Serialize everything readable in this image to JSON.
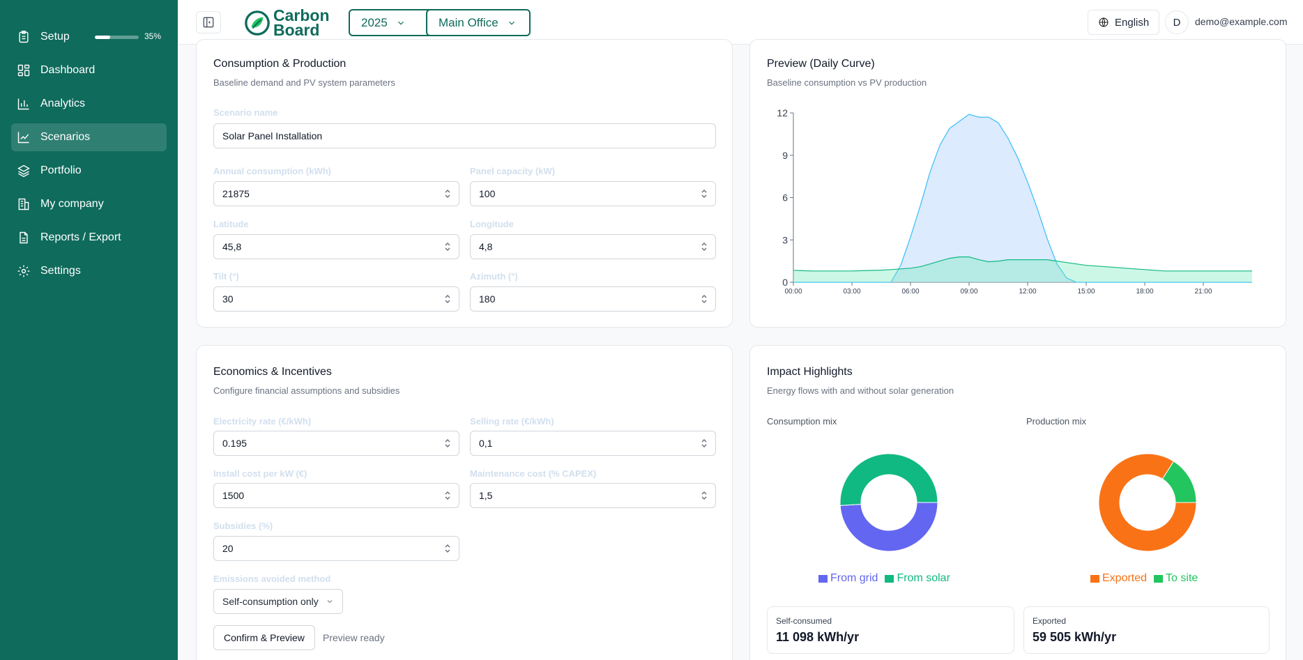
{
  "sidebar": {
    "setup_label": "Setup",
    "setup_progress_text": "35%",
    "setup_progress": 35,
    "items": [
      {
        "label": "Dashboard"
      },
      {
        "label": "Analytics"
      },
      {
        "label": "Scenarios"
      },
      {
        "label": "Portfolio"
      },
      {
        "label": "My company"
      },
      {
        "label": "Reports / Export"
      },
      {
        "label": "Settings"
      }
    ]
  },
  "header": {
    "logo_line1": "Carbon",
    "logo_line2": "Board",
    "year": "2025",
    "site": "Main Office",
    "language": "English",
    "avatar_initial": "D",
    "email": "demo@example.com"
  },
  "consumption": {
    "title": "Consumption & Production",
    "subtitle": "Baseline demand and PV system parameters",
    "scenario_label": "Scenario name",
    "scenario_value": "Solar Panel Installation",
    "annual_label": "Annual consumption (kWh)",
    "annual_value": "21875",
    "panel_label": "Panel capacity (kW)",
    "panel_value": "100",
    "lat_label": "Latitude",
    "lat_value": "45,8",
    "lon_label": "Longitude",
    "lon_value": "4,8",
    "tilt_label": "Tilt (°)",
    "tilt_value": "30",
    "azimuth_label": "Azimuth (°)",
    "azimuth_value": "180"
  },
  "economics": {
    "title": "Economics & Incentives",
    "subtitle": "Configure financial assumptions and subsidies",
    "elec_label": "Electricity rate (€/kWh)",
    "elec_value": "0.195",
    "sell_label": "Selling rate (€/kWh)",
    "sell_value": "0,1",
    "install_label": "Install cost per kW (€)",
    "install_value": "1500",
    "maint_label": "Maintenance cost (% CAPEX)",
    "maint_value": "1,5",
    "subsidies_label": "Subsidies (%)",
    "subsidies_value": "20",
    "emissions_label": "Emissions avoided method",
    "emissions_value": "Self-consumption only",
    "confirm_label": "Confirm & Preview",
    "status": "Preview ready"
  },
  "preview": {
    "title": "Preview (Daily Curve)",
    "subtitle": "Baseline consumption vs PV production"
  },
  "impact": {
    "title": "Impact Highlights",
    "subtitle": "Energy flows with and without solar generation",
    "consumption_mix_label": "Consumption mix",
    "production_mix_label": "Production mix",
    "self_consumed_label": "Self-consumed",
    "self_consumed_value": "11 098 kWh/yr",
    "exported_label": "Exported",
    "exported_value": "59 505 kWh/yr"
  },
  "colors": {
    "brand": "#0f6b5c",
    "grid": "#6366f1",
    "solar": "#10b981",
    "exported": "#f97316",
    "to_site": "#22c55e"
  },
  "chart_data": [
    {
      "type": "area",
      "title": "Preview (Daily Curve)",
      "xlabel": "",
      "ylabel": "",
      "ylim": [
        0,
        12
      ],
      "yticks": [
        0,
        3,
        6,
        9,
        12
      ],
      "xticks": [
        "00:00",
        "03:00",
        "06:00",
        "09:00",
        "12:00",
        "15:00",
        "18:00",
        "21:00"
      ],
      "x": [
        0,
        0.5,
        1,
        1.5,
        2,
        2.5,
        3,
        3.5,
        4,
        4.5,
        5,
        5.5,
        6,
        6.5,
        7,
        7.5,
        8,
        8.5,
        9,
        9.5,
        10,
        10.5,
        11,
        11.5,
        12,
        12.5,
        13,
        13.5,
        14,
        14.5,
        15,
        15.5,
        16,
        16.5,
        17,
        17.5,
        18,
        18.5,
        19,
        19.5,
        20,
        20.5,
        21,
        21.5,
        22,
        22.5,
        23.5
      ],
      "series": [
        {
          "name": "PV production",
          "color": "#38bdf8",
          "values": [
            0,
            0,
            0,
            0,
            0,
            0,
            0,
            0,
            0,
            0,
            0,
            1.2,
            3.2,
            5.4,
            7.8,
            9.7,
            10.9,
            11.4,
            11.9,
            11.7,
            11.7,
            11.3,
            10.2,
            8.8,
            7.1,
            5.2,
            3.1,
            1.3,
            0.3,
            0,
            0,
            0,
            0,
            0,
            0,
            0,
            0,
            0,
            0,
            0,
            0,
            0,
            0,
            0,
            0,
            0,
            0
          ]
        },
        {
          "name": "Baseline consumption",
          "color": "#10b981",
          "values": [
            0.85,
            0.82,
            0.8,
            0.8,
            0.8,
            0.8,
            0.8,
            0.82,
            0.84,
            0.86,
            0.9,
            0.95,
            1.0,
            1.1,
            1.3,
            1.5,
            1.7,
            1.8,
            1.8,
            1.6,
            1.45,
            1.5,
            1.6,
            1.6,
            1.6,
            1.6,
            1.6,
            1.5,
            1.4,
            1.3,
            1.2,
            1.15,
            1.1,
            1.05,
            1.0,
            0.95,
            0.9,
            0.85,
            0.8,
            0.8,
            0.8,
            0.8,
            0.8,
            0.8,
            0.8,
            0.8,
            0.8
          ]
        }
      ]
    },
    {
      "type": "pie",
      "title": "Consumption mix",
      "categories": [
        "From grid",
        "From solar"
      ],
      "values": [
        49,
        51
      ],
      "colors": [
        "#6366f1",
        "#10b981"
      ]
    },
    {
      "type": "pie",
      "title": "Production mix",
      "categories": [
        "Exported",
        "To site"
      ],
      "values": [
        84,
        16
      ],
      "colors": [
        "#f97316",
        "#22c55e"
      ]
    }
  ]
}
